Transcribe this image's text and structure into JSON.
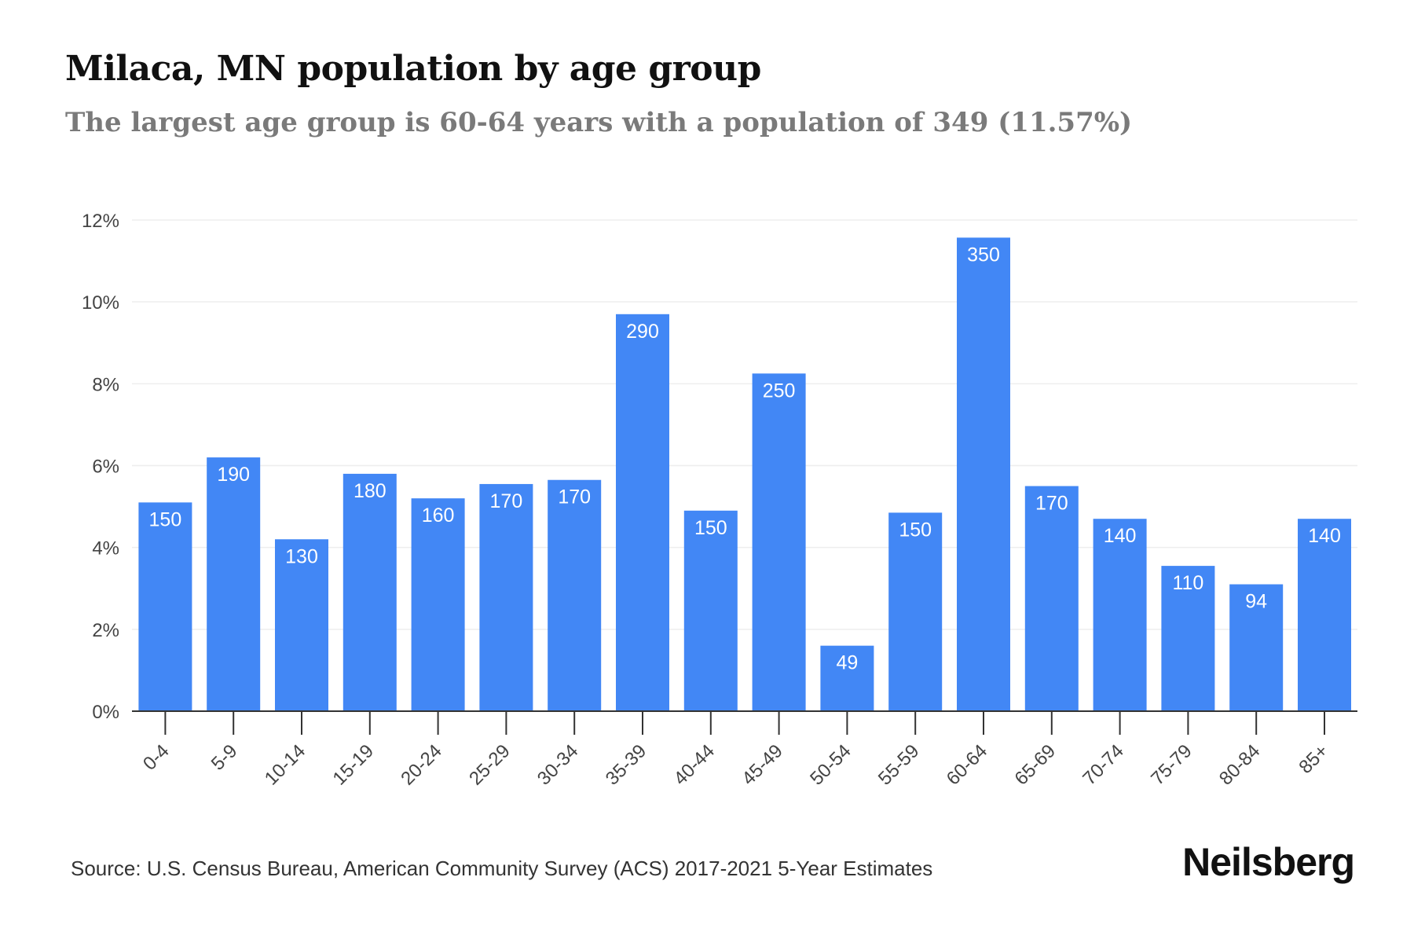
{
  "title": "Milaca, MN population by age group",
  "subtitle": "The largest age group is 60-64 years with a population of 349 (11.57%)",
  "source": "Source: U.S. Census Bureau, American Community Survey (ACS) 2017-2021 5-Year Estimates",
  "brand": "Neilsberg",
  "colors": {
    "bar": "#4287f5",
    "bar_label": "#ffffff",
    "grid": "#eeeeee",
    "axis": "#333333",
    "tick_text": "#444444"
  },
  "chart_data": {
    "type": "bar",
    "categories": [
      "0-4",
      "5-9",
      "10-14",
      "15-19",
      "20-24",
      "25-29",
      "30-34",
      "35-39",
      "40-44",
      "45-49",
      "50-54",
      "55-59",
      "60-64",
      "65-69",
      "70-74",
      "75-79",
      "80-84",
      "85+"
    ],
    "values": [
      5.1,
      6.2,
      4.2,
      5.8,
      5.2,
      5.55,
      5.65,
      9.7,
      4.9,
      8.25,
      1.6,
      4.85,
      11.57,
      5.5,
      4.7,
      3.55,
      3.1,
      4.7
    ],
    "data_labels": [
      "150",
      "190",
      "130",
      "180",
      "160",
      "170",
      "170",
      "290",
      "150",
      "250",
      "49",
      "150",
      "350",
      "170",
      "140",
      "110",
      "94",
      "140"
    ],
    "ylim": [
      0,
      12
    ],
    "yticks": [
      0,
      2,
      4,
      6,
      8,
      10,
      12
    ],
    "ytick_labels": [
      "0%",
      "2%",
      "4%",
      "6%",
      "8%",
      "10%",
      "12%"
    ],
    "xlabel": "",
    "ylabel": "",
    "grid": true,
    "legend": "none"
  }
}
